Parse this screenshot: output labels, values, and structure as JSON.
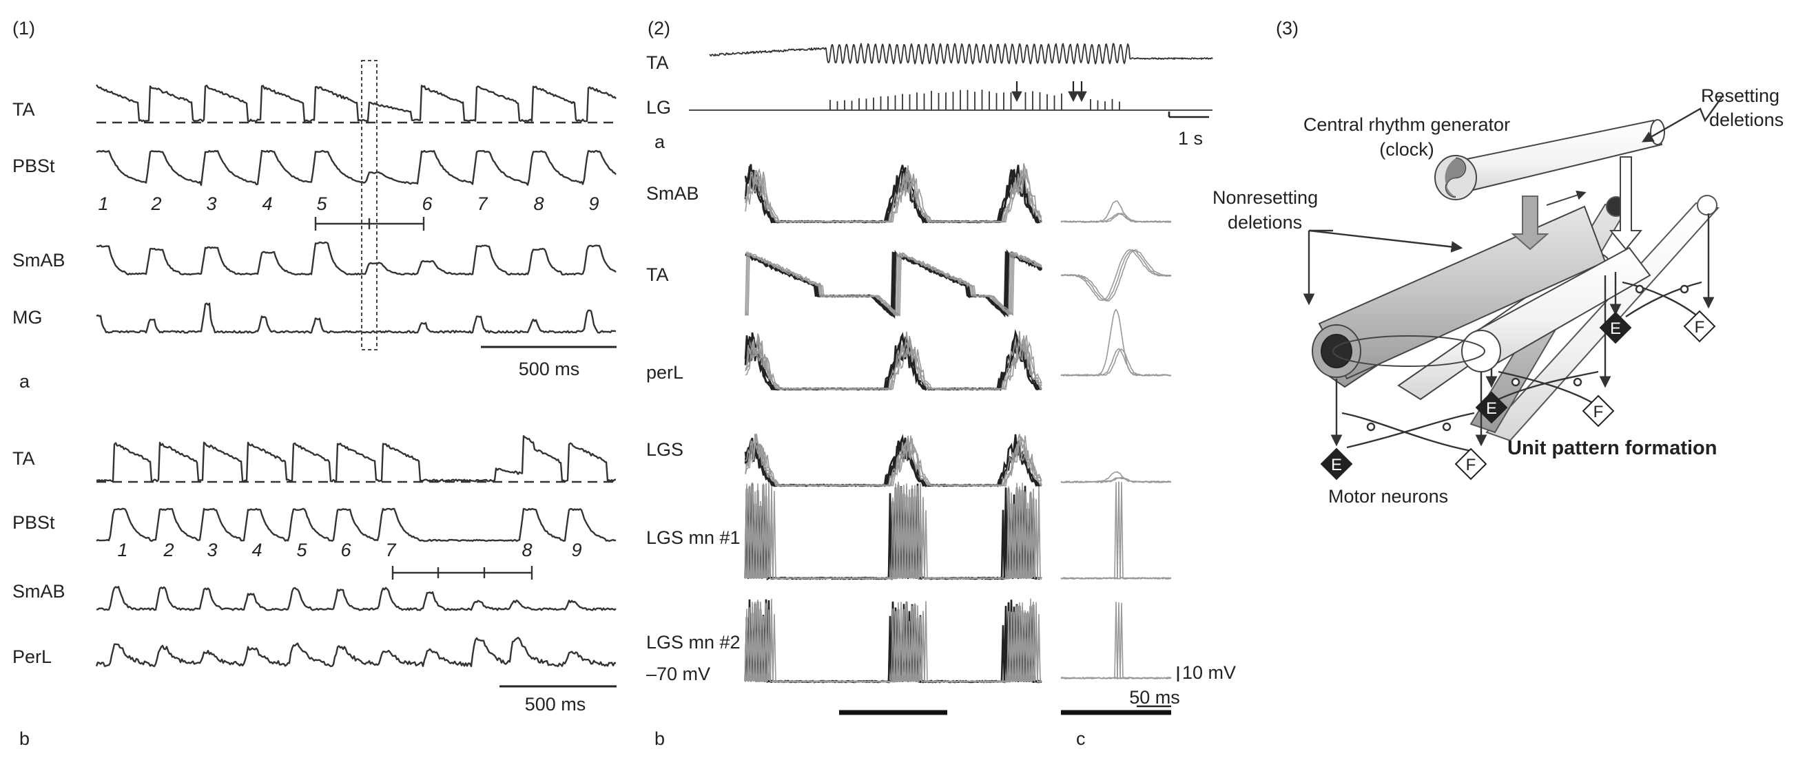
{
  "panel1": {
    "tag": "(1)",
    "a": {
      "sublabel": "a",
      "traces": [
        "TA",
        "PBSt",
        "SmAB",
        "MG"
      ],
      "burst_numbers": [
        "1",
        "2",
        "3",
        "4",
        "5",
        "6",
        "7",
        "8",
        "9"
      ],
      "scalebar": "500 ms"
    },
    "b": {
      "sublabel": "b",
      "traces": [
        "TA",
        "PBSt",
        "SmAB",
        "PerL"
      ],
      "burst_numbers": [
        "1",
        "2",
        "3",
        "4",
        "5",
        "6",
        "7",
        "8",
        "9"
      ],
      "scalebar": "500 ms"
    }
  },
  "panel2": {
    "tag": "(2)",
    "a": {
      "sublabel": "a",
      "traces": [
        "TA",
        "LG"
      ],
      "scalebar": "1 s"
    },
    "b": {
      "sublabel": "b",
      "traces": [
        "SmAB",
        "TA",
        "perL",
        "LGS",
        "LGS mn #1",
        "LGS mn #2"
      ],
      "voltage": "–70 mV"
    },
    "c": {
      "sublabel": "c",
      "scale_v": "10 mV",
      "scale_t": "50 ms"
    }
  },
  "panel3": {
    "tag": "(3)",
    "labels": {
      "resetting": [
        "Resetting",
        "deletions"
      ],
      "crg": [
        "Central rhythm generator",
        "(clock)"
      ],
      "nonresetting": [
        "Nonresetting",
        "deletions"
      ],
      "upf": "Unit pattern formation",
      "motor": "Motor neurons"
    },
    "neuron_letters": {
      "extensor": "E",
      "flexor": "F"
    }
  }
}
